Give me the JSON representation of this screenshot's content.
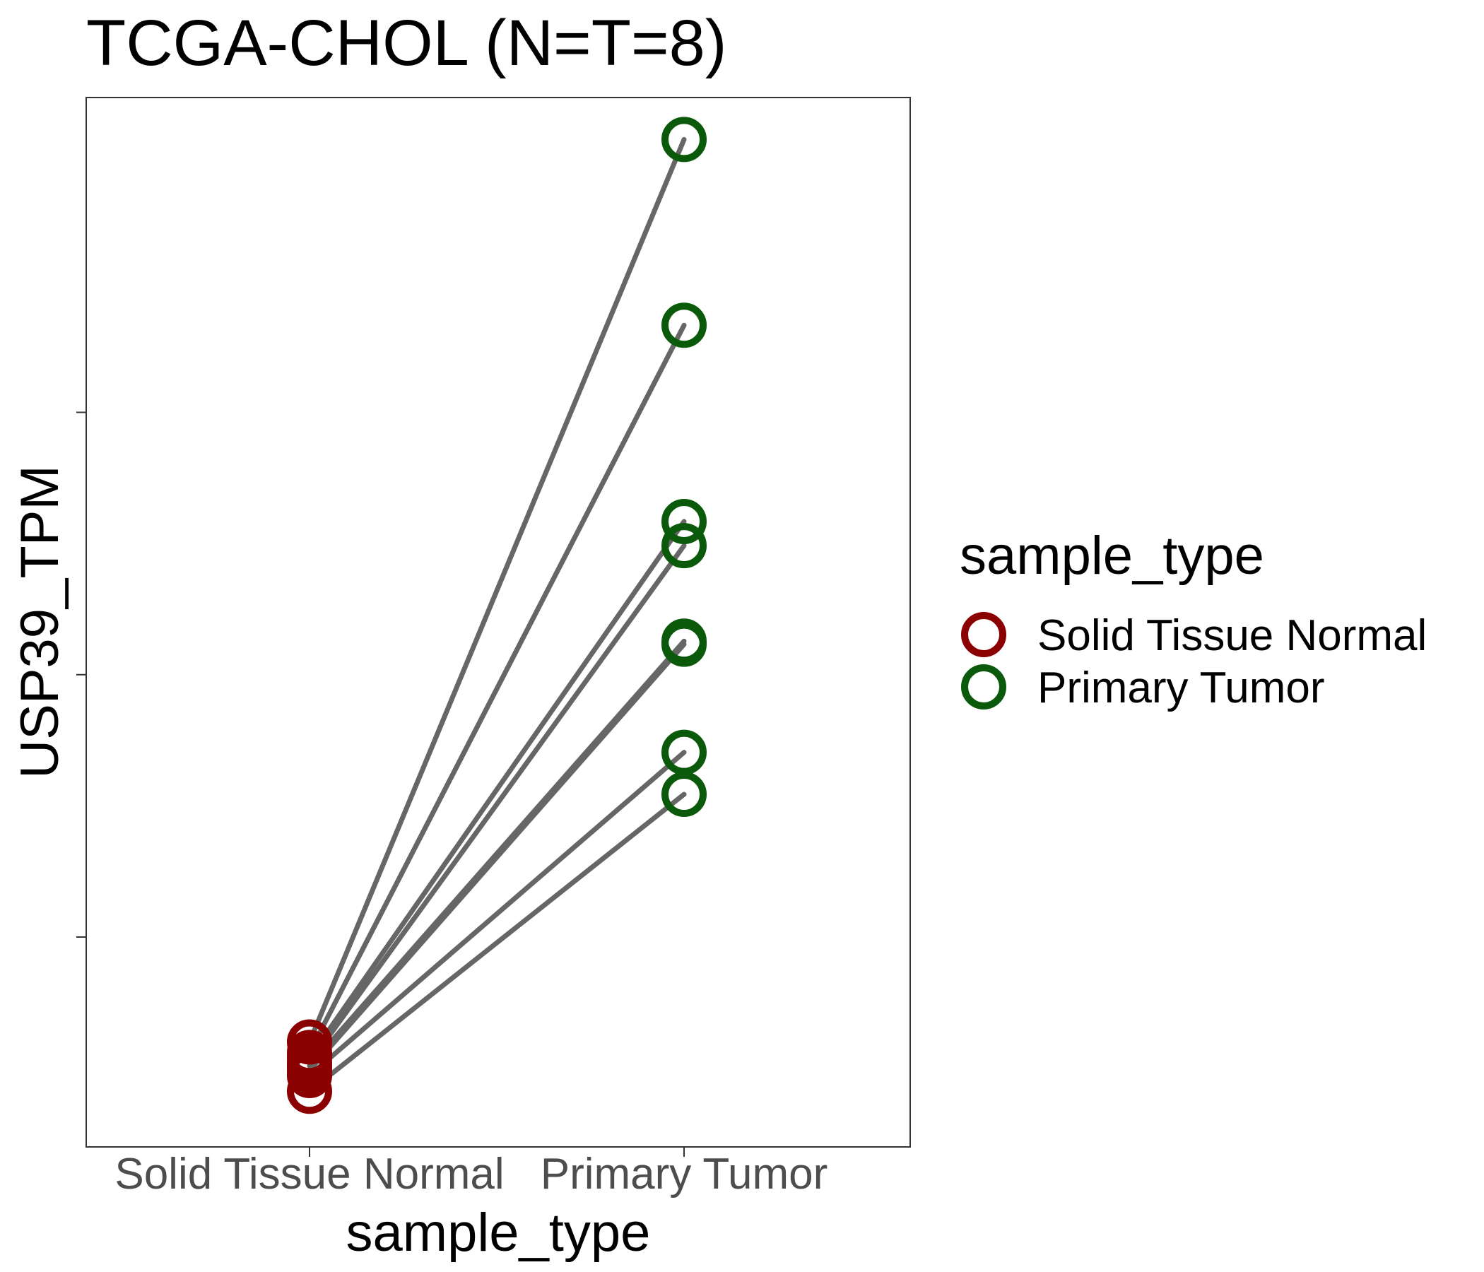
{
  "chart_data": {
    "type": "scatter",
    "subtype": "paired-dot",
    "title": "TCGA-CHOL  (N=T=8)",
    "xlabel": "sample_type",
    "ylabel": "USP39_TPM",
    "categories": [
      "Solid Tissue Normal",
      "Primary Tumor"
    ],
    "ylim": [
      0,
      100
    ],
    "y_ticks": [
      20,
      45,
      70
    ],
    "y_tick_labels_shown": false,
    "grid": false,
    "legend": {
      "title": "sample_type",
      "placement": "right",
      "entries": [
        {
          "label": "Solid Tissue Normal",
          "color": "#8b0000"
        },
        {
          "label": "Primary Tumor",
          "color": "#0b5a0b"
        }
      ]
    },
    "line_color": "#666666",
    "pairs": [
      {
        "normal": 10.0,
        "tumor": 96.0
      },
      {
        "normal": 9.0,
        "tumor": 78.3
      },
      {
        "normal": 8.5,
        "tumor": 59.6
      },
      {
        "normal": 8.0,
        "tumor": 57.3
      },
      {
        "normal": 7.7,
        "tumor": 48.2
      },
      {
        "normal": 7.3,
        "tumor": 47.9
      },
      {
        "normal": 6.8,
        "tumor": 37.6
      },
      {
        "normal": 5.3,
        "tumor": 33.6
      }
    ]
  }
}
